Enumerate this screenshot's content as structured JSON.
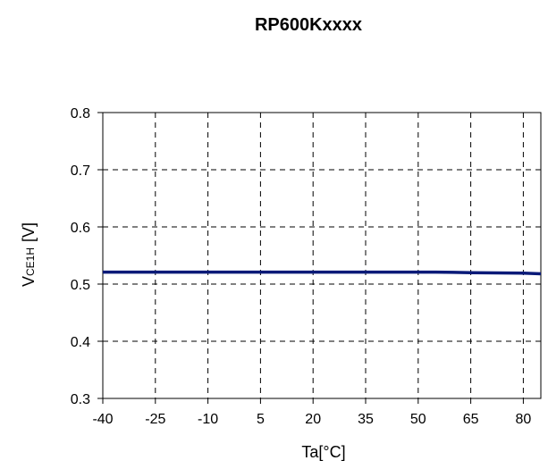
{
  "chart_data": {
    "type": "line",
    "title": "RP600Kxxxx",
    "xlabel": "Ta[°C]",
    "ylabel_main": "V",
    "ylabel_sub": "CE1H",
    "ylabel_unit": "[V]",
    "xlim": [
      -40,
      85
    ],
    "ylim": [
      0.3,
      0.8
    ],
    "x_ticks": [
      -40,
      -25,
      -10,
      5,
      20,
      35,
      50,
      65,
      80
    ],
    "y_ticks": [
      0.3,
      0.4,
      0.5,
      0.6,
      0.7,
      0.8
    ],
    "x_tick_labels": [
      "-40",
      "-25",
      "-10",
      "5",
      "20",
      "35",
      "50",
      "65",
      "80"
    ],
    "y_tick_labels": [
      "0.3",
      "0.4",
      "0.5",
      "0.6",
      "0.7",
      "0.8"
    ],
    "grid": true,
    "series": [
      {
        "color": "#0a1a78",
        "x": [
          -40,
          -25,
          -10,
          5,
          20,
          35,
          50,
          55,
          65,
          80,
          85
        ],
        "y": [
          0.521,
          0.521,
          0.521,
          0.521,
          0.521,
          0.521,
          0.521,
          0.521,
          0.52,
          0.519,
          0.518
        ]
      }
    ]
  }
}
